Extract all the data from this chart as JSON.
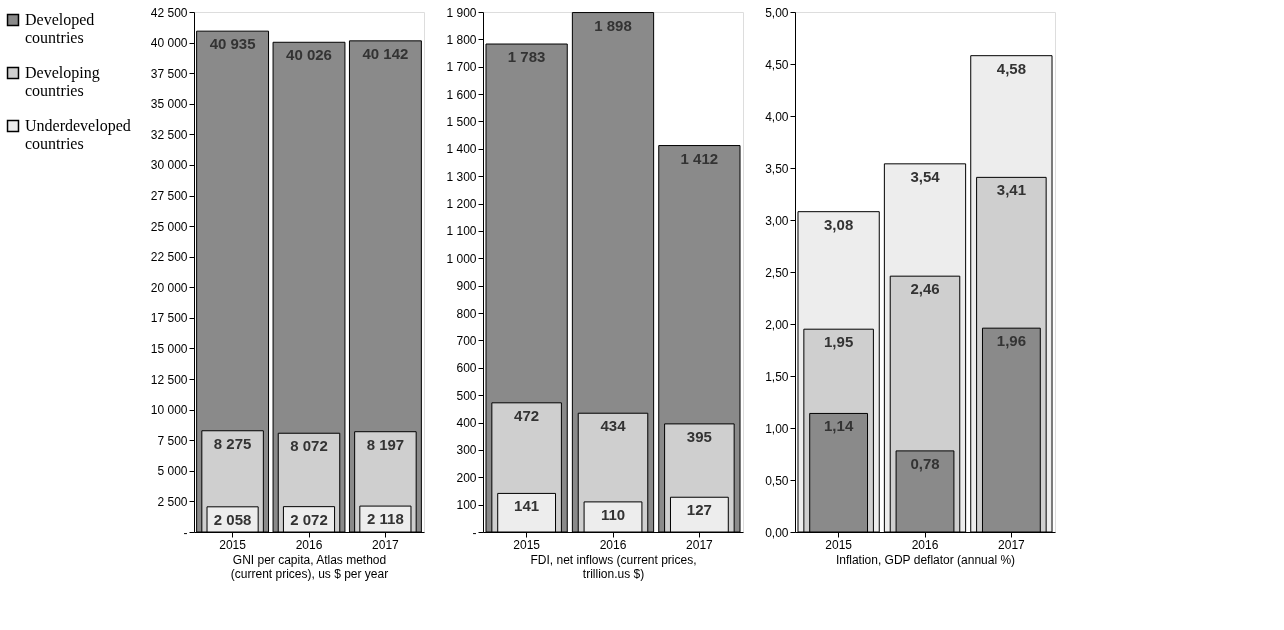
{
  "chart_data": [
    {
      "type": "bar",
      "categories": [
        "2015",
        "2016",
        "2017"
      ],
      "xlabel": "GNI per capita, Atlas method (current prices), us $  per year",
      "legend": "left",
      "grid": false,
      "ylim": [
        0,
        42500
      ],
      "yticks": [
        {
          "value": 0,
          "label": "-"
        },
        {
          "value": 2500,
          "label": "2 500"
        },
        {
          "value": 5000,
          "label": "5 000"
        },
        {
          "value": 7500,
          "label": "7 500"
        },
        {
          "value": 10000,
          "label": "10 000"
        },
        {
          "value": 12500,
          "label": "12 500"
        },
        {
          "value": 15000,
          "label": "15 000"
        },
        {
          "value": 17500,
          "label": "17 500"
        },
        {
          "value": 20000,
          "label": "20 000"
        },
        {
          "value": 22500,
          "label": "22 500"
        },
        {
          "value": 25000,
          "label": "25 000"
        },
        {
          "value": 27500,
          "label": "27 500"
        },
        {
          "value": 30000,
          "label": "30 000"
        },
        {
          "value": 32500,
          "label": "32 500"
        },
        {
          "value": 35000,
          "label": "35 000"
        },
        {
          "value": 37500,
          "label": "37 500"
        },
        {
          "value": 40000,
          "label": "40 000"
        },
        {
          "value": 42500,
          "label": "42 500"
        }
      ],
      "series": [
        {
          "name": "Developed countries",
          "color": "#8a8a8a",
          "values": [
            40935,
            40026,
            40142
          ],
          "value_labels": [
            "40 935",
            "40 026",
            "40 142"
          ]
        },
        {
          "name": "Developing countries",
          "color": "#cfcfcf",
          "values": [
            8275,
            8072,
            8197
          ],
          "value_labels": [
            "8 275",
            "8 072",
            "8 197"
          ]
        },
        {
          "name": "Underdeveloped countries",
          "color": "#ededed",
          "values": [
            2058,
            2072,
            2118
          ],
          "value_labels": [
            "2 058",
            "2 072",
            "2 118"
          ]
        }
      ]
    },
    {
      "type": "bar",
      "categories": [
        "2015",
        "2016",
        "2017"
      ],
      "xlabel": "FDI, net inflows (current prices, trillion.us $)",
      "grid": false,
      "ylim": [
        0,
        1900
      ],
      "yticks": [
        {
          "value": 0,
          "label": "-"
        },
        100,
        200,
        300,
        400,
        500,
        600,
        700,
        800,
        900,
        {
          "value": 1000,
          "label": "1 000"
        },
        {
          "value": 1100,
          "label": "1 100"
        },
        {
          "value": 1200,
          "label": "1 200"
        },
        {
          "value": 1300,
          "label": "1 300"
        },
        {
          "value": 1400,
          "label": "1 400"
        },
        {
          "value": 1500,
          "label": "1 500"
        },
        {
          "value": 1600,
          "label": "1 600"
        },
        {
          "value": 1700,
          "label": "1 700"
        },
        {
          "value": 1800,
          "label": "1 800"
        },
        {
          "value": 1900,
          "label": "1 900"
        }
      ],
      "series": [
        {
          "color": "#8a8a8a",
          "values": [
            1783,
            1898,
            1412
          ],
          "value_labels": [
            "1 783",
            "1 898",
            "1 412"
          ]
        },
        {
          "color": "#cfcfcf",
          "values": [
            472,
            434,
            395
          ],
          "value_labels": [
            "472",
            "434",
            "395"
          ]
        },
        {
          "color": "#ededed",
          "values": [
            141,
            110,
            127
          ],
          "value_labels": [
            "141",
            "110",
            "127"
          ]
        }
      ]
    },
    {
      "type": "bar",
      "categories": [
        "2015",
        "2016",
        "2017"
      ],
      "xlabel": "Inflation, GDP deflator (annual %)",
      "grid": false,
      "ylim": [
        0,
        5
      ],
      "yticks": [
        {
          "value": 0,
          "label": "0,00"
        },
        {
          "value": 0.5,
          "label": "0,50"
        },
        {
          "value": 1,
          "label": "1,00"
        },
        {
          "value": 1.5,
          "label": "1,50"
        },
        {
          "value": 2,
          "label": "2,00"
        },
        {
          "value": 2.5,
          "label": "2,50"
        },
        {
          "value": 3,
          "label": "3,00"
        },
        {
          "value": 3.5,
          "label": "3,50"
        },
        {
          "value": 4,
          "label": "4,00"
        },
        {
          "value": 4.5,
          "label": "4,50"
        },
        {
          "value": 5,
          "label": "5,00"
        }
      ],
      "series": [
        {
          "color": "#ededed",
          "values": [
            3.08,
            3.54,
            4.58
          ],
          "value_labels": [
            "3,08",
            "3,54",
            "4,58"
          ]
        },
        {
          "color": "#cfcfcf",
          "values": [
            1.95,
            2.46,
            3.41
          ],
          "value_labels": [
            "1,95",
            "2,46",
            "3,41"
          ]
        },
        {
          "color": "#8a8a8a",
          "values": [
            1.14,
            0.78,
            1.96
          ],
          "value_labels": [
            "1,14",
            "0,78",
            "1,96"
          ]
        }
      ]
    }
  ]
}
